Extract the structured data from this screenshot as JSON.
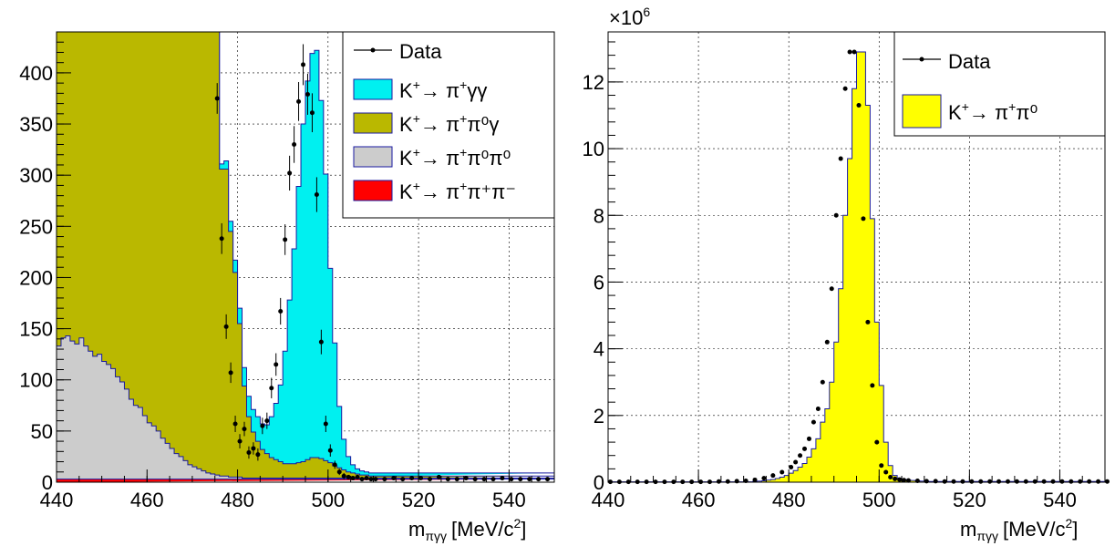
{
  "chart_data": [
    {
      "type": "histogram",
      "xlabel": "m_{πγγ} [MeV/c²]",
      "xlabel_main": "m",
      "xlabel_sub": "πγγ",
      "xlabel_units": "[MeV/c",
      "xlabel_sup": "2",
      "xlabel_close": "]",
      "xlim": [
        440,
        550
      ],
      "ylim": [
        0,
        440
      ],
      "x_ticks": [
        440,
        460,
        480,
        500,
        520,
        540
      ],
      "y_ticks": [
        0,
        50,
        100,
        150,
        200,
        250,
        300,
        350,
        400
      ],
      "grid": true,
      "legend_position": "top-right",
      "bin_edges_start": 440,
      "bin_width": 1,
      "series": [
        {
          "name": "K⁺→ π⁺γγ",
          "legend_base": "K",
          "legend_sup1": "+",
          "legend_arrow": "→ π",
          "legend_sup2": "+",
          "legend_rest": "γγ",
          "color": "#00f0f0",
          "values": [
            2,
            2,
            2,
            2,
            2,
            2,
            2,
            2,
            2,
            2,
            2,
            2,
            2,
            2,
            2,
            2,
            2,
            2,
            2,
            2,
            2,
            2,
            2,
            2,
            2,
            2,
            2,
            2,
            2,
            2,
            2,
            2,
            2,
            2,
            2,
            2,
            5,
            8,
            10,
            12,
            15,
            18,
            20,
            22,
            24,
            25,
            28,
            40,
            55,
            75,
            110,
            160,
            210,
            270,
            330,
            370,
            395,
            398,
            350,
            280,
            190,
            120,
            60,
            30,
            15,
            8,
            5,
            4,
            3,
            3,
            3,
            3,
            3,
            3,
            3,
            3,
            3,
            3,
            3,
            3,
            3,
            3,
            3,
            3,
            3,
            3,
            3,
            3,
            3,
            3,
            3,
            3,
            3,
            3,
            3,
            3,
            3,
            3,
            3,
            3,
            3,
            3,
            3,
            3,
            3,
            3,
            3,
            3,
            3,
            3,
            3
          ]
        },
        {
          "name": "K⁺→ π⁺π⁰γ",
          "legend_base": "K",
          "legend_sup1": "+",
          "legend_arrow": "→ π",
          "legend_sup2": "+",
          "legend_rest": "π⁰γ",
          "color": "#bab800",
          "values": [
            440,
            440,
            440,
            440,
            440,
            440,
            440,
            440,
            440,
            440,
            440,
            440,
            440,
            440,
            440,
            440,
            440,
            440,
            440,
            440,
            440,
            440,
            440,
            440,
            440,
            440,
            440,
            440,
            440,
            440,
            440,
            440,
            440,
            440,
            440,
            440,
            300,
            300,
            240,
            200,
            150,
            90,
            60,
            45,
            36,
            28,
            24,
            20,
            18,
            16,
            14,
            14,
            14,
            15,
            16,
            18,
            20,
            20,
            19,
            17,
            15,
            12,
            10,
            8,
            6,
            5,
            4,
            3,
            3,
            2,
            2,
            2,
            2,
            2,
            2,
            2,
            2,
            2,
            2,
            2,
            2,
            2,
            2,
            2,
            2,
            2,
            2,
            2,
            2,
            2,
            2,
            2,
            2,
            2,
            2,
            2,
            2,
            2,
            2,
            2,
            2,
            2,
            2,
            2,
            2,
            2,
            2,
            2,
            2,
            2
          ]
        },
        {
          "name": "K⁺→ π⁺π⁰π⁰",
          "legend_base": "K",
          "legend_sup1": "+",
          "legend_arrow": "→ π",
          "legend_sup2": "+",
          "legend_rest": "π⁰π⁰",
          "color": "#cccccc",
          "values": [
            130,
            138,
            140,
            135,
            132,
            138,
            130,
            125,
            120,
            122,
            115,
            112,
            108,
            100,
            95,
            88,
            78,
            72,
            70,
            62,
            55,
            52,
            47,
            40,
            35,
            30,
            25,
            22,
            18,
            14,
            12,
            10,
            8,
            6,
            5,
            4,
            3,
            3,
            2,
            2,
            2,
            1,
            1,
            1,
            1,
            1,
            1,
            1,
            1,
            1,
            1,
            1,
            1,
            1,
            1,
            1,
            1,
            1,
            1,
            1,
            1,
            1,
            1,
            1,
            1,
            1,
            1,
            1,
            1,
            1,
            1,
            1,
            1,
            1,
            1,
            1,
            1,
            1,
            1,
            1,
            1,
            1,
            1,
            1,
            1,
            1,
            1,
            1,
            1,
            1,
            1,
            1,
            1,
            1,
            1,
            1,
            1,
            1,
            1,
            1,
            1,
            1,
            1,
            1,
            1,
            1,
            1,
            1,
            1,
            1
          ]
        },
        {
          "name": "K⁺→ π⁺π⁺π⁻",
          "legend_base": "K",
          "legend_sup1": "+",
          "legend_arrow": "→ π",
          "legend_sup2": "+",
          "legend_rest": "π⁺π⁻",
          "color": "#ff0000",
          "values": [
            3,
            3,
            3,
            3,
            3,
            3,
            3,
            3,
            3,
            3,
            3,
            3,
            3,
            3,
            3,
            3,
            3,
            3,
            3,
            3,
            3,
            3,
            3,
            3,
            3,
            3,
            3,
            3,
            3,
            3,
            3,
            3,
            3,
            3,
            3,
            3,
            3,
            3,
            3,
            3,
            3,
            3,
            3,
            3,
            3,
            3,
            3,
            3,
            3,
            3,
            3,
            3,
            3,
            3,
            3,
            3,
            3,
            3,
            3,
            3,
            3,
            3,
            3,
            3,
            3,
            3,
            3,
            3,
            3,
            3,
            3,
            3,
            3,
            3,
            3,
            3,
            3,
            3,
            3,
            3,
            3,
            3,
            3,
            3,
            3,
            3,
            3,
            3,
            3,
            3,
            3,
            3,
            3,
            3,
            3,
            3,
            3,
            3,
            3,
            3,
            3,
            3,
            3,
            3,
            3,
            3,
            3,
            3,
            3,
            3
          ]
        }
      ],
      "data": {
        "name": "Data",
        "x": [
          475,
          476,
          477,
          478,
          479,
          480,
          481,
          482,
          483,
          484,
          485,
          486,
          487,
          488,
          489,
          490,
          491,
          492,
          493,
          494,
          495,
          496,
          497,
          498,
          499,
          500,
          501,
          502,
          503,
          504,
          505,
          506,
          507,
          508,
          509,
          510,
          512,
          514,
          516,
          518,
          520,
          522,
          524,
          526,
          528,
          530,
          532,
          534,
          536,
          538,
          540,
          542,
          544,
          546,
          548
        ],
        "y": [
          375,
          238,
          152,
          107,
          57,
          40,
          52,
          29,
          33,
          27,
          55,
          60,
          92,
          115,
          167,
          237,
          302,
          330,
          372,
          408,
          379,
          361,
          281,
          137,
          57,
          31,
          17,
          10,
          6,
          5,
          4,
          5,
          3,
          4,
          3,
          3,
          3,
          4,
          3,
          4,
          4,
          3,
          5,
          3,
          3,
          4,
          3,
          3,
          3,
          4,
          3,
          3,
          3,
          3,
          3
        ],
        "err": [
          15,
          15,
          12,
          10,
          8,
          7,
          7,
          6,
          6,
          6,
          8,
          8,
          10,
          11,
          13,
          15,
          17,
          18,
          19,
          20,
          20,
          19,
          17,
          12,
          8,
          6,
          4,
          3,
          3,
          2,
          2,
          2,
          2,
          2,
          2,
          2,
          2,
          2,
          2,
          2,
          2,
          2,
          2,
          2,
          2,
          2,
          2,
          2,
          2,
          2,
          2,
          2,
          2,
          2,
          2
        ],
        "color": "#000000"
      }
    },
    {
      "type": "histogram",
      "xlabel": "m_{πγγ} [MeV/c²]",
      "xlabel_main": "m",
      "xlabel_sub": "πγγ",
      "xlabel_units": "[MeV/c",
      "xlabel_sup": "2",
      "xlabel_close": "]",
      "y_multiplier": "×10",
      "y_multiplier_exp": "6",
      "xlim": [
        440,
        550
      ],
      "ylim": [
        0,
        13.5
      ],
      "x_ticks": [
        440,
        460,
        480,
        500,
        520,
        540
      ],
      "y_ticks": [
        0,
        2,
        4,
        6,
        8,
        10,
        12
      ],
      "grid": true,
      "legend_position": "top-right",
      "bin_edges_start": 440,
      "bin_width": 1,
      "series": [
        {
          "name": "K⁺→ π⁺π⁰",
          "legend_base": "K",
          "legend_sup1": "+",
          "legend_arrow": "→ π",
          "legend_sup2": "+",
          "legend_rest": "π⁰",
          "color": "#ffff00",
          "values": [
            0.01,
            0.01,
            0.01,
            0.01,
            0.01,
            0.01,
            0.01,
            0.01,
            0.01,
            0.01,
            0.01,
            0.01,
            0.01,
            0.01,
            0.01,
            0.01,
            0.01,
            0.01,
            0.01,
            0.01,
            0.01,
            0.01,
            0.01,
            0.01,
            0.01,
            0.01,
            0.01,
            0.01,
            0.01,
            0.01,
            0.01,
            0.01,
            0.02,
            0.03,
            0.04,
            0.06,
            0.08,
            0.11,
            0.15,
            0.2,
            0.27,
            0.35,
            0.45,
            0.56,
            0.75,
            1.0,
            1.3,
            1.8,
            2.2,
            3.0,
            4.2,
            5.8,
            8.0,
            9.7,
            11.8,
            12.9,
            12.9,
            11.3,
            7.9,
            4.8,
            2.9,
            1.2,
            0.5,
            0.2,
            0.12,
            0.08,
            0.06,
            0.05,
            0.04,
            0.03,
            0.03,
            0.02,
            0.02,
            0.02,
            0.02,
            0.02,
            0.02,
            0.02,
            0.02,
            0.02,
            0.02,
            0.02,
            0.02,
            0.02,
            0.02,
            0.02,
            0.02,
            0.02,
            0.02,
            0.02,
            0.02,
            0.02,
            0.02,
            0.02,
            0.02,
            0.02,
            0.02,
            0.02,
            0.02,
            0.02,
            0.02,
            0.02,
            0.02,
            0.02,
            0.02,
            0.02,
            0.02,
            0.02,
            0.02,
            0.02
          ]
        }
      ],
      "data": {
        "name": "Data",
        "x": [
          440,
          442,
          444,
          446,
          448,
          450,
          452,
          454,
          456,
          458,
          460,
          462,
          464,
          466,
          468,
          470,
          472,
          474,
          476,
          478,
          480,
          481,
          482,
          483,
          484,
          485,
          486,
          487,
          488,
          489,
          490,
          491,
          492,
          493,
          494,
          495,
          496,
          497,
          498,
          499,
          500,
          501,
          502,
          503,
          504,
          505,
          506,
          508,
          510,
          512,
          514,
          516,
          518,
          520,
          522,
          524,
          526,
          528,
          530,
          532,
          534,
          536,
          538,
          540,
          542,
          544,
          546,
          548,
          550
        ],
        "y": [
          0.01,
          0.01,
          0.01,
          0.01,
          0.01,
          0.01,
          0.01,
          0.01,
          0.01,
          0.01,
          0.01,
          0.01,
          0.02,
          0.02,
          0.03,
          0.04,
          0.07,
          0.12,
          0.2,
          0.3,
          0.45,
          0.6,
          0.8,
          1.0,
          1.3,
          1.8,
          2.2,
          3.0,
          4.2,
          5.8,
          8.0,
          9.7,
          11.8,
          12.9,
          12.9,
          11.3,
          7.9,
          4.8,
          2.9,
          1.2,
          0.5,
          0.3,
          0.15,
          0.1,
          0.08,
          0.06,
          0.05,
          0.04,
          0.03,
          0.03,
          0.02,
          0.02,
          0.02,
          0.02,
          0.02,
          0.02,
          0.02,
          0.02,
          0.02,
          0.02,
          0.02,
          0.02,
          0.02,
          0.02,
          0.02,
          0.02,
          0.02,
          0.02,
          0.02
        ],
        "color": "#000000"
      }
    }
  ]
}
